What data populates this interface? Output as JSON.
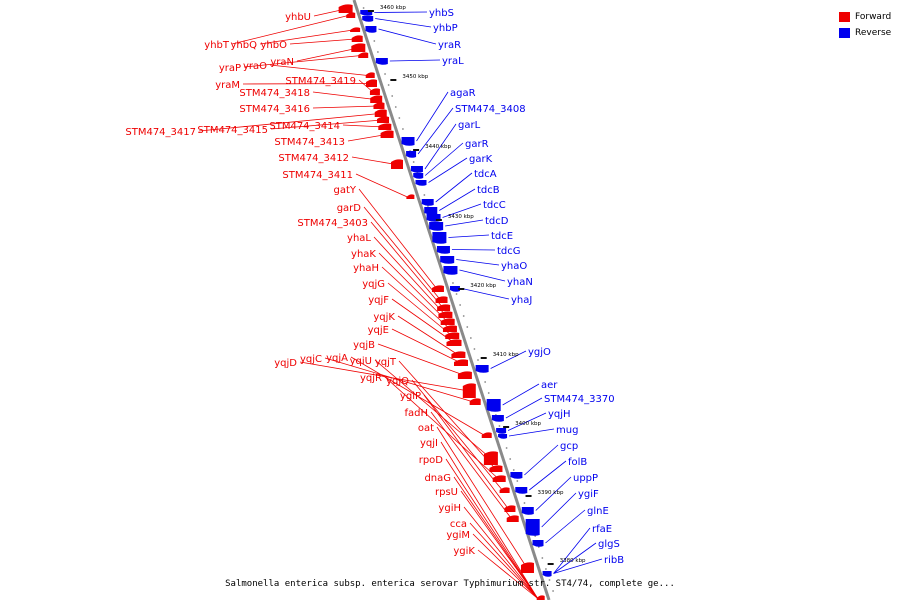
{
  "legend": {
    "forward_label": "Forward",
    "reverse_label": "Reverse",
    "forward_color": "#ee0000",
    "reverse_color": "#0000ee"
  },
  "caption": "Salmonella enterica subsp. enterica serovar Typhimurium str. ST4/74, complete ge...",
  "axis_ticks": [
    "3460 kbp",
    "3450 kbp",
    "3440 kbp",
    "3430 kbp",
    "3420 kbp",
    "3410 kbp",
    "3400 kbp",
    "3390 kbp",
    "3380 kbp"
  ],
  "forward_labels": [
    "yhbU",
    "yhbT",
    "yhbQ",
    "yhbO",
    "yraN",
    "yraP",
    "yraO",
    "yraM",
    "STM474_3419",
    "STM474_3418",
    "STM474_3416",
    "STM474_3417",
    "STM474_3415",
    "STM474_3414",
    "STM474_3413",
    "STM474_3412",
    "STM474_3411",
    "gatY",
    "garD",
    "STM474_3403",
    "yhaL",
    "yhaK",
    "yhaH",
    "yqjG",
    "yqjF",
    "yqjK",
    "yqjE",
    "yqjB",
    "yqjD",
    "yqjC",
    "yqjA",
    "yqiU",
    "yqjT",
    "yqjR",
    "yqjQ",
    "ygiP",
    "fadH",
    "oat",
    "yqjI",
    "rpoD",
    "dnaG",
    "rpsU",
    "ygiH",
    "cca",
    "ygiM",
    "ygiK"
  ],
  "reverse_labels": [
    "yhbS",
    "yhbP",
    "yraR",
    "yraL",
    "agaR",
    "STM474_3408",
    "garL",
    "garR",
    "garK",
    "tdcA",
    "tdcB",
    "tdcC",
    "tdcD",
    "tdcE",
    "tdcG",
    "yhaO",
    "yhaN",
    "yhaJ",
    "ygjO",
    "aer",
    "STM474_3370",
    "yqjH",
    "mug",
    "gcp",
    "folB",
    "uppP",
    "ygiF",
    "glnE",
    "rfaE",
    "glgS",
    "ribB"
  ]
}
